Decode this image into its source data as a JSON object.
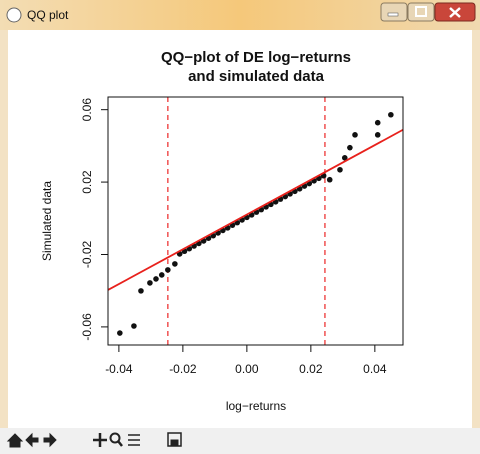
{
  "window": {
    "title": "QQ plot"
  },
  "chart_data": {
    "type": "scatter",
    "title": [
      "QQ−plot of DE log−returns",
      "and simulated data"
    ],
    "x_label": "log−returns",
    "y_label": "Simulated data",
    "xlim": [
      -0.0434,
      0.0488
    ],
    "ylim": [
      -0.07,
      0.067
    ],
    "xticks": [
      -0.04,
      -0.02,
      {
        "value": 0,
        "label": "0.00"
      },
      0.02,
      0.04
    ],
    "yticks": [
      -0.06,
      -0.02,
      0.02,
      0.06
    ],
    "point_color": "#111111",
    "x": [
      -0.0397,
      -0.0353,
      -0.0331,
      -0.0303,
      -0.0284,
      -0.0266,
      -0.0247,
      -0.0225,
      -0.021,
      -0.0195,
      -0.018,
      -0.0165,
      -0.015,
      -0.0135,
      -0.012,
      -0.0105,
      -0.009,
      -0.0075,
      -0.006,
      -0.0045,
      -0.003,
      -0.0015,
      0,
      0.0015,
      0.003,
      0.0045,
      0.006,
      0.0075,
      0.009,
      0.0105,
      0.012,
      0.0135,
      0.015,
      0.0165,
      0.018,
      0.0195,
      0.021,
      0.0225,
      0.024,
      0.0259,
      0.0291,
      0.0306,
      0.0322,
      0.0338,
      0.0409,
      0.0409,
      0.045
    ],
    "values": [
      -0.0634,
      -0.0595,
      -0.0401,
      -0.0357,
      -0.0335,
      -0.0313,
      -0.0285,
      -0.0252,
      -0.0197,
      -0.0182,
      -0.0168,
      -0.0153,
      -0.0139,
      -0.0125,
      -0.011,
      -0.0096,
      -0.0081,
      -0.0067,
      -0.0053,
      -0.0038,
      -0.0024,
      -0.0009,
      0.0005,
      0.0019,
      0.0034,
      0.0048,
      0.0063,
      0.0077,
      0.0091,
      0.0106,
      0.012,
      0.0135,
      0.0149,
      0.0163,
      0.0178,
      0.0192,
      0.0207,
      0.0221,
      0.0235,
      0.0213,
      0.0268,
      0.0334,
      0.039,
      0.0461,
      0.0461,
      0.0528,
      0.0572
    ],
    "reference_line": {
      "color": "#e8211c",
      "x": [
        -0.0434,
        0.0488
      ],
      "y": [
        -0.0396,
        0.0489
      ]
    },
    "vlines": {
      "color": "#f05050",
      "values": [
        -0.0247,
        0.0244
      ]
    }
  }
}
